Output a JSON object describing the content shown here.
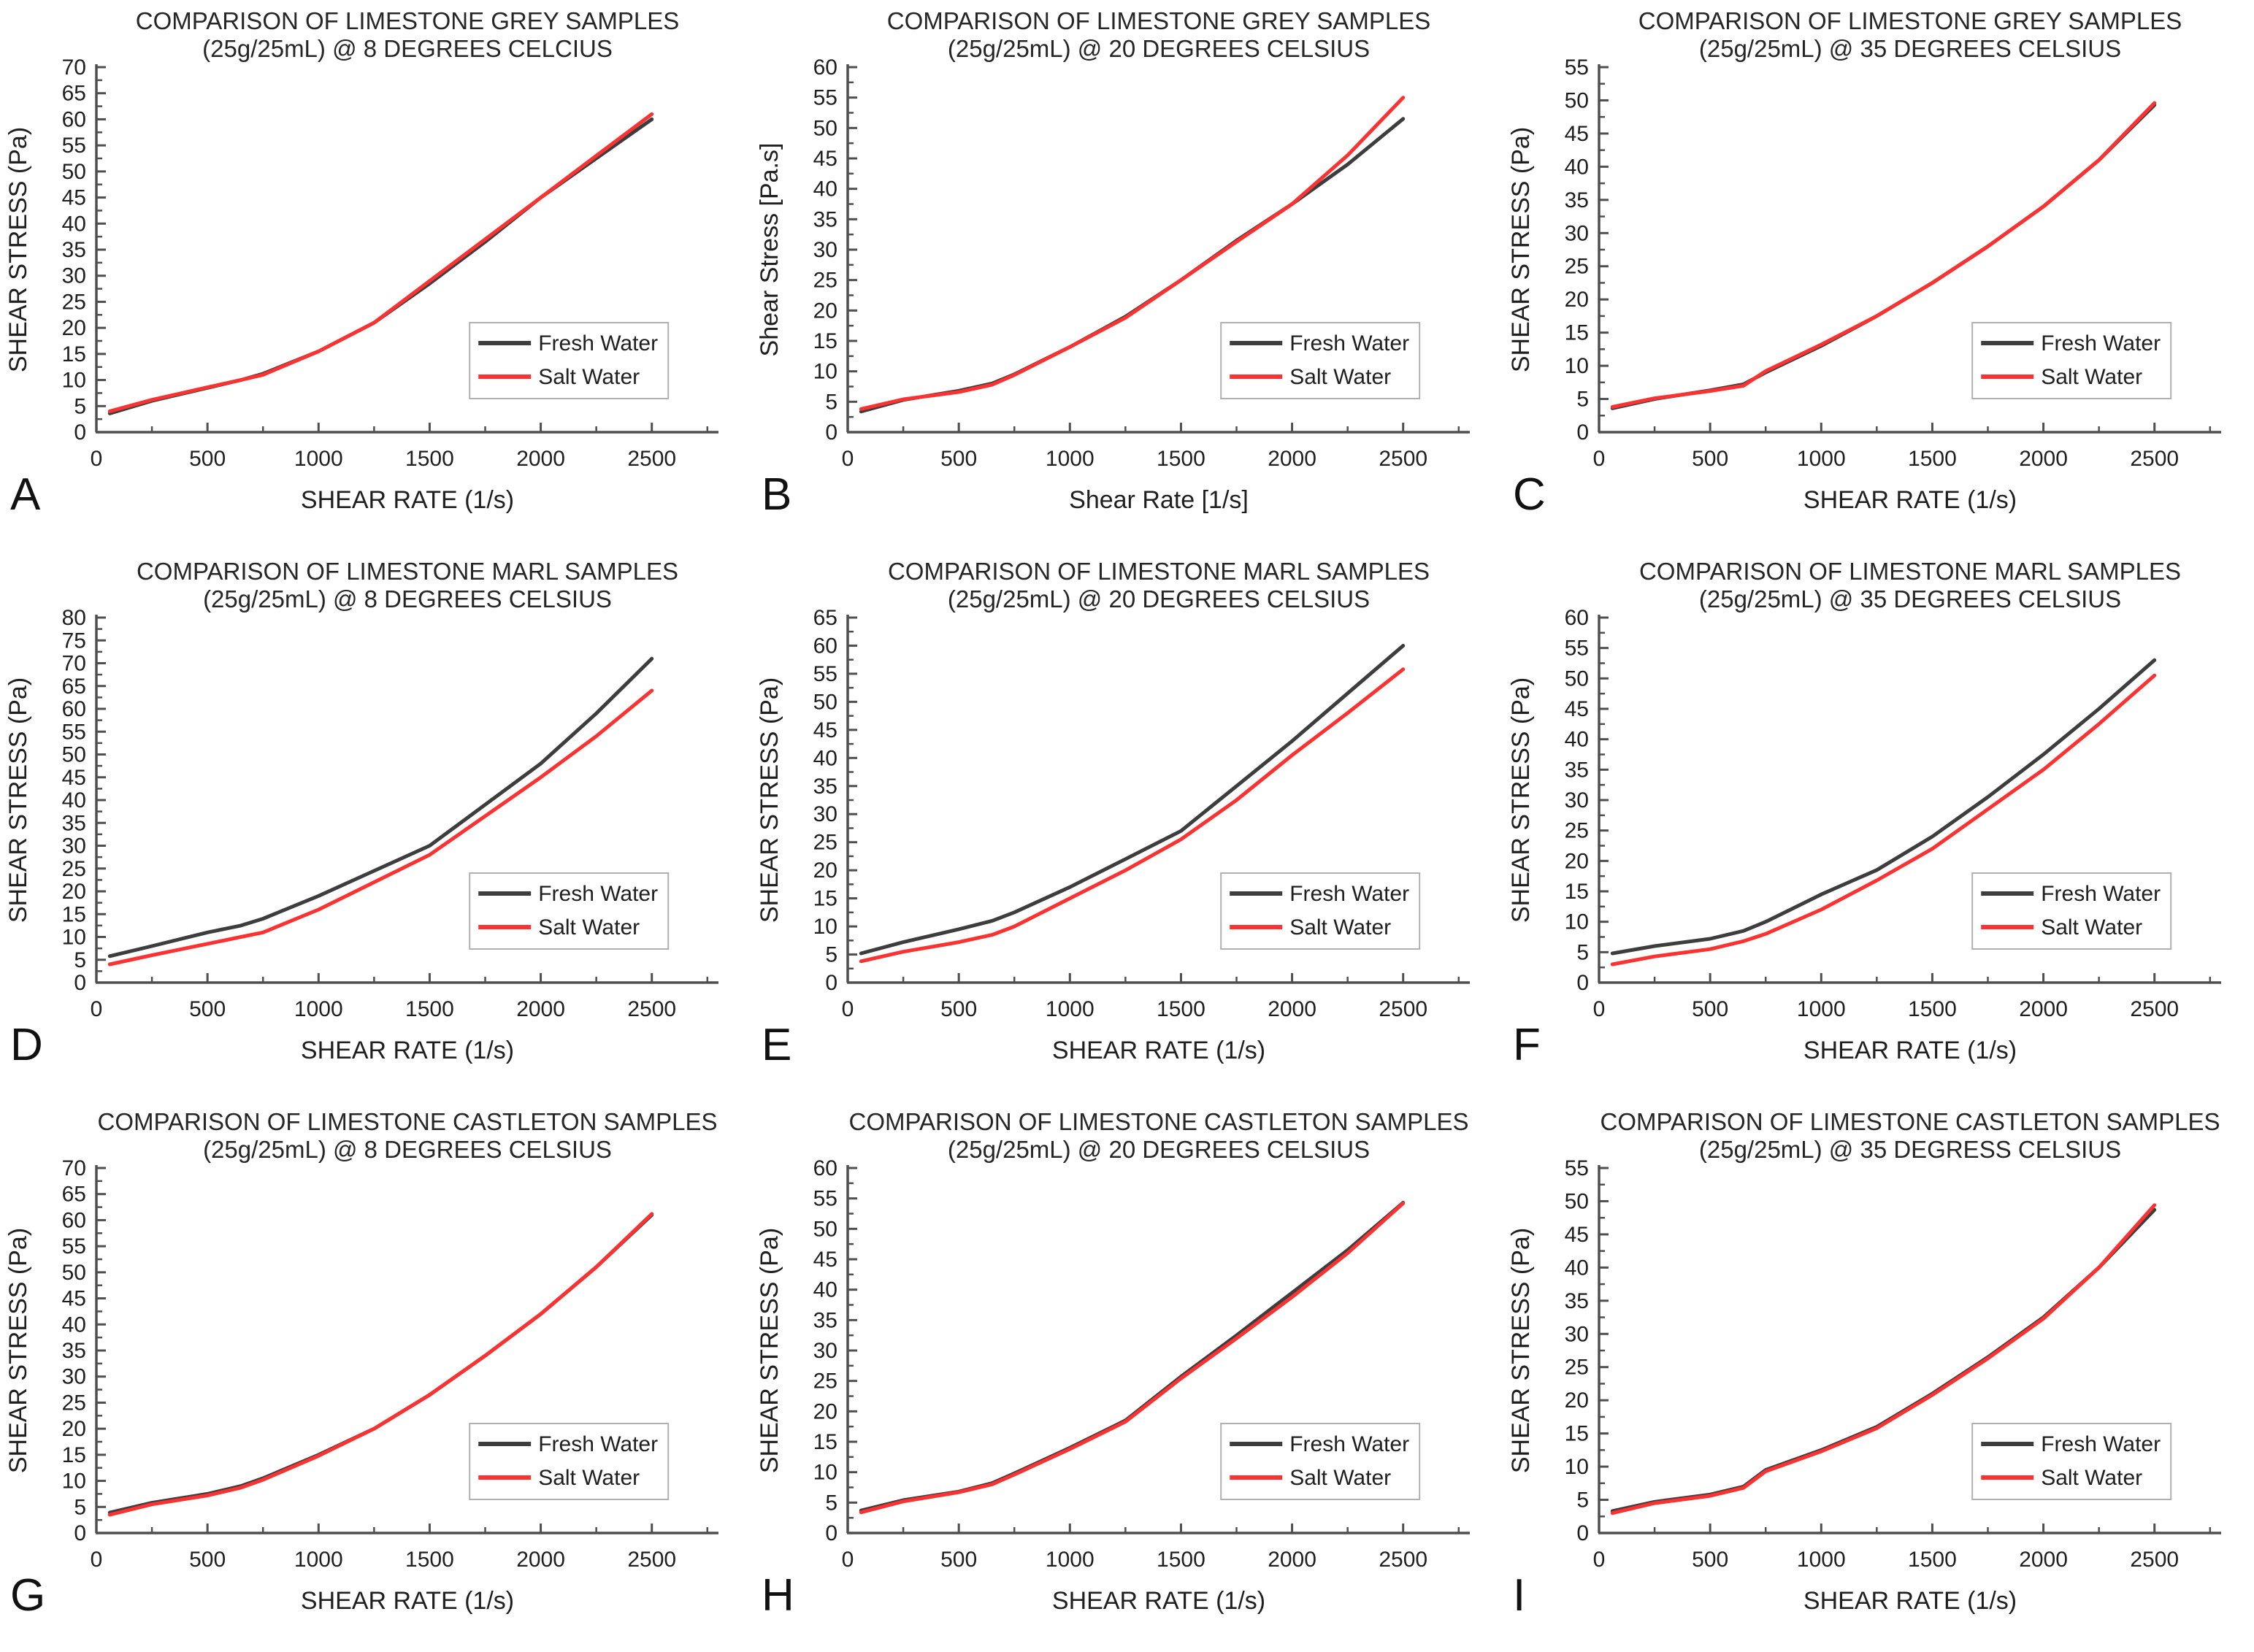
{
  "page": {
    "background": "#ffffff"
  },
  "styles": {
    "fresh_water_color": "#3d3d3d",
    "salt_water_color": "#fa3232",
    "axis_color": "#4f4f4f",
    "legend_border_color": "#b0b0b0",
    "legend_background": "#ffffff"
  },
  "legend": {
    "items": [
      {
        "label": "Fresh Water",
        "color": "#3d3d3d"
      },
      {
        "label": "Salt Water",
        "color": "#fa3232"
      }
    ]
  },
  "chart_data": [
    {
      "panel": "A",
      "type": "line",
      "title": "COMPARISON OF LIMESTONE GREY SAMPLES",
      "subtitle": "(25g/25mL) @ 8 DEGREES CELCIUS",
      "xlabel": "SHEAR RATE (1/s)",
      "ylabel": "SHEAR STRESS (Pa)",
      "xlim": [
        0,
        2800
      ],
      "ylim": [
        0,
        70
      ],
      "ytick_step": 5,
      "xticks": [
        0,
        500,
        1000,
        1500,
        2000,
        2500
      ],
      "grid": false,
      "legend_position": "right-lower",
      "x": [
        60,
        250,
        500,
        650,
        750,
        1000,
        1250,
        1500,
        1750,
        2000,
        2250,
        2500
      ],
      "series": [
        {
          "name": "Fresh Water",
          "color": "#3d3d3d",
          "values": [
            3.6,
            6.0,
            8.5,
            10.0,
            11.2,
            15.5,
            21.0,
            28.5,
            36.5,
            45.0,
            52.5,
            60.0
          ]
        },
        {
          "name": "Salt Water",
          "color": "#fa3232",
          "values": [
            4.0,
            6.2,
            8.6,
            10.0,
            11.0,
            15.5,
            21.0,
            29.0,
            37.0,
            45.0,
            53.0,
            61.0
          ]
        }
      ]
    },
    {
      "panel": "B",
      "type": "line",
      "title": "COMPARISON OF LIMESTONE GREY SAMPLES",
      "subtitle": "(25g/25mL) @ 20 DEGREES CELSIUS",
      "xlabel": "Shear Rate [1/s]",
      "ylabel": "Shear Stress [Pa.s]",
      "xlim": [
        0,
        2800
      ],
      "ylim": [
        0,
        60
      ],
      "ytick_step": 5,
      "xticks": [
        0,
        500,
        1000,
        1500,
        2000,
        2500
      ],
      "grid": false,
      "legend_position": "right-lower",
      "x": [
        60,
        250,
        500,
        650,
        750,
        1000,
        1250,
        1500,
        1750,
        2000,
        2250,
        2500
      ],
      "series": [
        {
          "name": "Fresh Water",
          "color": "#3d3d3d",
          "values": [
            3.4,
            5.3,
            6.8,
            8.0,
            9.5,
            14.0,
            19.0,
            25.0,
            31.5,
            37.5,
            44.0,
            51.5
          ]
        },
        {
          "name": "Salt Water",
          "color": "#fa3232",
          "values": [
            3.8,
            5.4,
            6.6,
            7.8,
            9.4,
            14.0,
            18.8,
            25.0,
            31.3,
            37.5,
            45.5,
            55.0
          ]
        }
      ]
    },
    {
      "panel": "C",
      "type": "line",
      "title": "COMPARISON OF LIMESTONE GREY SAMPLES",
      "subtitle": "(25g/25mL) @ 35 DEGREES CELSIUS",
      "xlabel": "SHEAR RATE (1/s)",
      "ylabel": "SHEAR STRESS (Pa)",
      "xlim": [
        0,
        2800
      ],
      "ylim": [
        0,
        55
      ],
      "ytick_step": 5,
      "xticks": [
        0,
        500,
        1000,
        1500,
        2000,
        2500
      ],
      "grid": false,
      "legend_position": "right-lower",
      "x": [
        60,
        250,
        500,
        650,
        750,
        1000,
        1250,
        1500,
        1750,
        2000,
        2250,
        2500
      ],
      "series": [
        {
          "name": "Fresh Water",
          "color": "#3d3d3d",
          "values": [
            3.6,
            5.0,
            6.3,
            7.2,
            9.0,
            13.0,
            17.5,
            22.5,
            28.0,
            34.0,
            41.0,
            49.3
          ]
        },
        {
          "name": "Salt Water",
          "color": "#fa3232",
          "values": [
            3.8,
            5.1,
            6.2,
            7.0,
            9.2,
            13.2,
            17.5,
            22.5,
            28.0,
            34.0,
            41.0,
            49.6
          ]
        }
      ]
    },
    {
      "panel": "D",
      "type": "line",
      "title": "COMPARISON OF LIMESTONE MARL SAMPLES",
      "subtitle": "(25g/25mL) @ 8 DEGREES CELSIUS",
      "xlabel": "SHEAR RATE (1/s)",
      "ylabel": "SHEAR STRESS (Pa)",
      "xlim": [
        0,
        2800
      ],
      "ylim": [
        0,
        80
      ],
      "ytick_step": 5,
      "xticks": [
        0,
        500,
        1000,
        1500,
        2000,
        2500
      ],
      "grid": false,
      "legend_position": "right-lower",
      "x": [
        60,
        250,
        500,
        650,
        750,
        1000,
        1250,
        1500,
        1750,
        2000,
        2250,
        2500
      ],
      "series": [
        {
          "name": "Fresh Water",
          "color": "#3d3d3d",
          "values": [
            5.8,
            8.0,
            11.0,
            12.5,
            14.0,
            19.0,
            24.5,
            30.0,
            39.0,
            48.0,
            59.0,
            71.0
          ]
        },
        {
          "name": "Salt Water",
          "color": "#fa3232",
          "values": [
            4.0,
            6.0,
            8.5,
            10.0,
            11.0,
            16.0,
            22.0,
            28.0,
            36.5,
            45.0,
            54.0,
            64.0
          ]
        }
      ]
    },
    {
      "panel": "E",
      "type": "line",
      "title": "COMPARISON OF LIMESTONE MARL SAMPLES",
      "subtitle": "(25g/25mL) @ 20 DEGREES CELSIUS",
      "xlabel": "SHEAR RATE (1/s)",
      "ylabel": "SHEAR STRESS (Pa)",
      "xlim": [
        0,
        2800
      ],
      "ylim": [
        0,
        65
      ],
      "ytick_step": 5,
      "xticks": [
        0,
        500,
        1000,
        1500,
        2000,
        2500
      ],
      "grid": false,
      "legend_position": "right-lower",
      "x": [
        60,
        250,
        500,
        650,
        750,
        1000,
        1250,
        1500,
        1750,
        2000,
        2250,
        2500
      ],
      "series": [
        {
          "name": "Fresh Water",
          "color": "#3d3d3d",
          "values": [
            5.2,
            7.2,
            9.5,
            11.0,
            12.5,
            17.0,
            22.0,
            27.0,
            35.0,
            43.0,
            51.5,
            60.0
          ]
        },
        {
          "name": "Salt Water",
          "color": "#fa3232",
          "values": [
            3.8,
            5.5,
            7.2,
            8.5,
            10.0,
            15.0,
            20.0,
            25.5,
            32.5,
            40.5,
            48.0,
            55.8
          ]
        }
      ]
    },
    {
      "panel": "F",
      "type": "line",
      "title": "COMPARISON OF LIMESTONE MARL SAMPLES",
      "subtitle": "(25g/25mL) @ 35 DEGREES CELSIUS",
      "xlabel": "SHEAR RATE (1/s)",
      "ylabel": "SHEAR STRESS (Pa)",
      "xlim": [
        0,
        2800
      ],
      "ylim": [
        0,
        60
      ],
      "ytick_step": 5,
      "xticks": [
        0,
        500,
        1000,
        1500,
        2000,
        2500
      ],
      "grid": false,
      "legend_position": "right-lower",
      "x": [
        60,
        250,
        500,
        650,
        750,
        1000,
        1250,
        1500,
        1750,
        2000,
        2250,
        2500
      ],
      "series": [
        {
          "name": "Fresh Water",
          "color": "#3d3d3d",
          "values": [
            4.8,
            6.0,
            7.2,
            8.5,
            10.0,
            14.5,
            18.5,
            24.0,
            30.5,
            37.5,
            45.0,
            53.0
          ]
        },
        {
          "name": "Salt Water",
          "color": "#fa3232",
          "values": [
            3.0,
            4.3,
            5.5,
            6.8,
            8.0,
            12.0,
            16.8,
            22.0,
            28.5,
            35.0,
            42.5,
            50.5
          ]
        }
      ]
    },
    {
      "panel": "G",
      "type": "line",
      "title": "COMPARISON OF LIMESTONE CASTLETON SAMPLES",
      "subtitle": "(25g/25mL) @ 8 DEGREES CELSIUS",
      "xlabel": "SHEAR RATE (1/s)",
      "ylabel": "SHEAR STRESS (Pa)",
      "xlim": [
        0,
        2800
      ],
      "ylim": [
        0,
        70
      ],
      "ytick_step": 5,
      "xticks": [
        0,
        500,
        1000,
        1500,
        2000,
        2500
      ],
      "grid": false,
      "legend_position": "right-lower",
      "x": [
        60,
        250,
        500,
        650,
        750,
        1000,
        1250,
        1500,
        1750,
        2000,
        2250,
        2500
      ],
      "series": [
        {
          "name": "Fresh Water",
          "color": "#3d3d3d",
          "values": [
            3.9,
            5.8,
            7.5,
            9.0,
            10.5,
            15.0,
            20.0,
            26.5,
            34.0,
            42.0,
            51.0,
            61.0
          ]
        },
        {
          "name": "Salt Water",
          "color": "#fa3232",
          "values": [
            3.5,
            5.5,
            7.2,
            8.7,
            10.2,
            14.8,
            20.0,
            26.5,
            34.0,
            42.0,
            51.0,
            61.2
          ]
        }
      ]
    },
    {
      "panel": "H",
      "type": "line",
      "title": "COMPARISON OF LIMESTONE CASTLETON SAMPLES",
      "subtitle": "(25g/25mL) @ 20 DEGREES CELSIUS",
      "xlabel": "SHEAR RATE (1/s)",
      "ylabel": "SHEAR STRESS (Pa)",
      "xlim": [
        0,
        2800
      ],
      "ylim": [
        0,
        60
      ],
      "ytick_step": 5,
      "xticks": [
        0,
        500,
        1000,
        1500,
        2000,
        2500
      ],
      "grid": false,
      "legend_position": "right-lower",
      "x": [
        60,
        250,
        500,
        650,
        750,
        1000,
        1250,
        1500,
        1750,
        2000,
        2250,
        2500
      ],
      "series": [
        {
          "name": "Fresh Water",
          "color": "#3d3d3d",
          "values": [
            3.7,
            5.4,
            6.8,
            8.2,
            9.8,
            14.0,
            18.5,
            25.7,
            32.5,
            39.5,
            46.5,
            54.3
          ]
        },
        {
          "name": "Salt Water",
          "color": "#fa3232",
          "values": [
            3.4,
            5.2,
            6.7,
            8.0,
            9.6,
            13.8,
            18.3,
            25.4,
            32.0,
            38.8,
            46.0,
            54.2
          ]
        }
      ]
    },
    {
      "panel": "I",
      "type": "line",
      "title": "COMPARISON OF LIMESTONE CASTLETON SAMPLES",
      "subtitle": "(25g/25mL) @ 35 DEGRESS CELSIUS",
      "xlabel": "SHEAR RATE (1/s)",
      "ylabel": "SHEAR STRESS (Pa)",
      "xlim": [
        0,
        2800
      ],
      "ylim": [
        0,
        55
      ],
      "ytick_step": 5,
      "xticks": [
        0,
        500,
        1000,
        1500,
        2000,
        2500
      ],
      "grid": false,
      "legend_position": "right-lower",
      "x": [
        60,
        250,
        500,
        650,
        750,
        1000,
        1250,
        1500,
        1750,
        2000,
        2250,
        2500
      ],
      "series": [
        {
          "name": "Fresh Water",
          "color": "#3d3d3d",
          "values": [
            3.3,
            4.7,
            5.8,
            7.0,
            9.5,
            12.5,
            16.0,
            21.0,
            26.5,
            32.5,
            40.0,
            48.7
          ]
        },
        {
          "name": "Salt Water",
          "color": "#fa3232",
          "values": [
            3.0,
            4.5,
            5.6,
            6.8,
            9.3,
            12.3,
            15.8,
            20.8,
            26.3,
            32.3,
            40.0,
            49.4
          ]
        }
      ]
    }
  ]
}
